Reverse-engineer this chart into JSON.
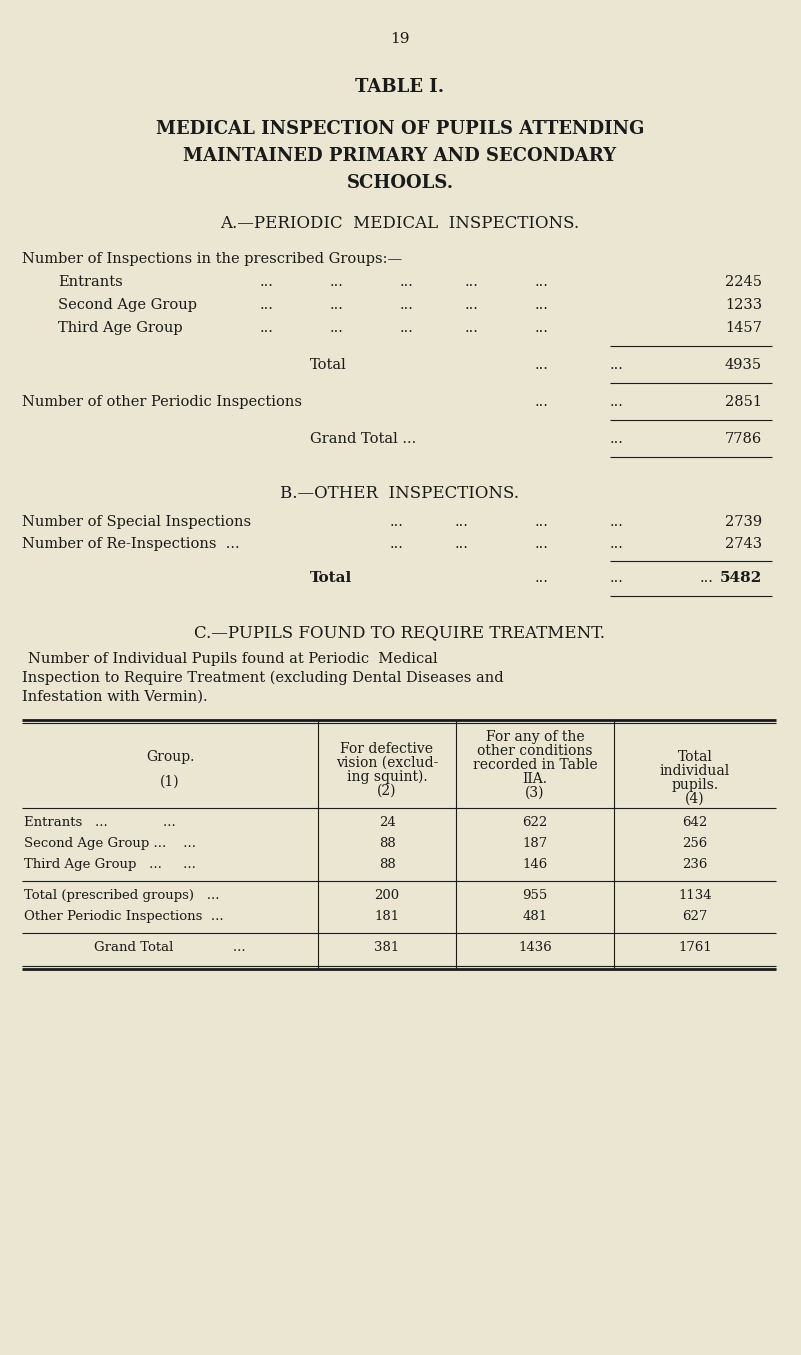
{
  "bg_color": "#eae6d2",
  "text_color": "#1a1a1a",
  "page_number": "19",
  "table_title": "TABLE I.",
  "main_title_line1": "MEDICAL INSPECTION OF PUPILS ATTENDING",
  "main_title_line2": "MAINTAINED PRIMARY AND SECONDARY",
  "main_title_line3": "SCHOOLS.",
  "section_a_title": "A.—PERIODIC  MEDICAL  INSPECTIONS.",
  "section_a_intro": "Number of Inspections in the prescribed Groups:—",
  "section_a_rows": [
    {
      "label": "Entrants",
      "value": "2245"
    },
    {
      "label": "Second Age Group",
      "value": "1233"
    },
    {
      "label": "Third Age Group",
      "value": "1457"
    }
  ],
  "section_a_total_label": "Total",
  "section_a_total_value": "4935",
  "section_a_other_label": "Number of other Periodic Inspections",
  "section_a_other_value": "2851",
  "section_a_grand_label": "Grand Total ...",
  "section_a_grand_value": "7786",
  "section_b_title": "B.—OTHER  INSPECTIONS.",
  "section_b_row1_label": "Number of Special Inspections",
  "section_b_row1_value": "2739",
  "section_b_row2_label": "Number of Re-Inspections  ...",
  "section_b_row2_value": "2743",
  "section_b_total_label": "Total",
  "section_b_total_value": "5482",
  "section_c_title": "C.—PUPILS FOUND TO REQUIRE TREATMENT.",
  "section_c_line1": "Number of Individual Pupils found at Periodic  Medical",
  "section_c_line2": "Inspection to Require Treatment (excluding Dental Diseases and",
  "section_c_line3": "Infestation with Vermin).",
  "col1_header": "Group.\n\n(1)",
  "col2_header": "For defective\nvision (exclud-\ning squint).\n(2)",
  "col3_header": "For any of the\nother conditions\nrecorded in Table\nIIA.\n(3)",
  "col4_header": "Total\nindividual\npupils.\n(4)",
  "trow1": [
    "Entrants   ...             ...",
    "24",
    "622",
    "642"
  ],
  "trow2": [
    "Second Age Group ...    ...",
    "88",
    "187",
    "256"
  ],
  "trow3": [
    "Third Age Group   ...     ...",
    "88",
    "146",
    "236"
  ],
  "trow4": [
    "Total (prescribed groups)   ...",
    "200",
    "955",
    "1134"
  ],
  "trow5": [
    "Other Periodic Inspections  ...",
    "181",
    "481",
    "627"
  ],
  "trow6": [
    "Grand Total              ...",
    "381",
    "1436",
    "1761"
  ]
}
